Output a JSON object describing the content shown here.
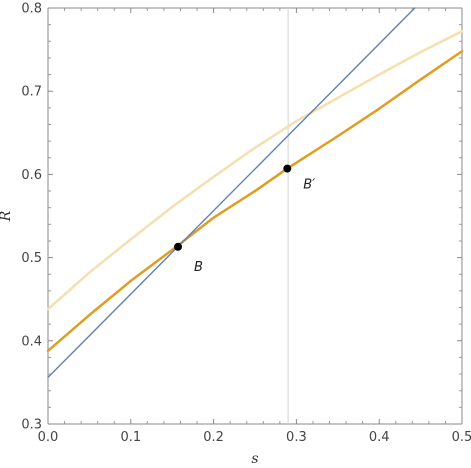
{
  "chart_data": {
    "type": "line",
    "xlabel": "s",
    "ylabel": "R",
    "xlim": [
      0.0,
      0.5
    ],
    "ylim": [
      0.3,
      0.8
    ],
    "x_ticks": [
      "0.0",
      "0.1",
      "0.2",
      "0.3",
      "0.4",
      "0.5"
    ],
    "y_ticks": [
      "0.3",
      "0.4",
      "0.5",
      "0.6",
      "0.7",
      "0.8"
    ],
    "grid": false,
    "vertical_reference_line": {
      "x": 0.29,
      "color": "#d3d3d3"
    },
    "series": [
      {
        "color": "#f6dfae",
        "points": [
          [
            0.0,
            0.438
          ],
          [
            0.05,
            0.482
          ],
          [
            0.1,
            0.522
          ],
          [
            0.15,
            0.561
          ],
          [
            0.2,
            0.597
          ],
          [
            0.25,
            0.632
          ],
          [
            0.3,
            0.664
          ],
          [
            0.35,
            0.692
          ],
          [
            0.4,
            0.72
          ],
          [
            0.45,
            0.747
          ],
          [
            0.5,
            0.772
          ]
        ]
      },
      {
        "color": "#e19c24",
        "points": [
          [
            0.0,
            0.388
          ],
          [
            0.05,
            0.431
          ],
          [
            0.1,
            0.472
          ],
          [
            0.155,
            0.513
          ],
          [
            0.2,
            0.548
          ],
          [
            0.25,
            0.58
          ],
          [
            0.289,
            0.607
          ],
          [
            0.35,
            0.646
          ],
          [
            0.4,
            0.679
          ],
          [
            0.45,
            0.714
          ],
          [
            0.5,
            0.748
          ]
        ]
      },
      {
        "color": "#5e81b5",
        "points": [
          [
            0.0,
            0.356
          ],
          [
            0.443,
            0.8
          ]
        ]
      }
    ],
    "points": [
      {
        "label": "B",
        "x": 0.157,
        "y": 0.513
      },
      {
        "label": "B′",
        "x": 0.289,
        "y": 0.607
      }
    ]
  }
}
